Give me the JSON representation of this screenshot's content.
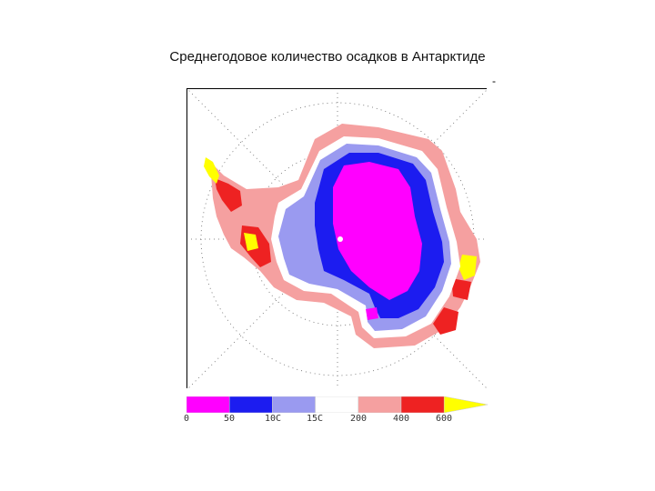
{
  "title": "Среднегодовое количество осадков в Антарктиде",
  "corner_mark": "-",
  "legend": {
    "levels": [
      {
        "label": "0",
        "color": "#ff00ff"
      },
      {
        "label": "50",
        "color": "#1c1cf0"
      },
      {
        "label": "10C",
        "color": "#9a9af0"
      },
      {
        "label": "15C",
        "color": "#ffffff"
      },
      {
        "label": "200",
        "color": "#f5a0a0"
      },
      {
        "label": "400",
        "color": "#ee2222"
      },
      {
        "label": "600",
        "color": "#ffff00"
      }
    ]
  },
  "colors": {
    "magenta": "#ff00ff",
    "blue": "#1c1cf0",
    "lightblue": "#9a9af0",
    "pink": "#f5a0a0",
    "red": "#ee2222",
    "yellow": "#ffff00"
  }
}
